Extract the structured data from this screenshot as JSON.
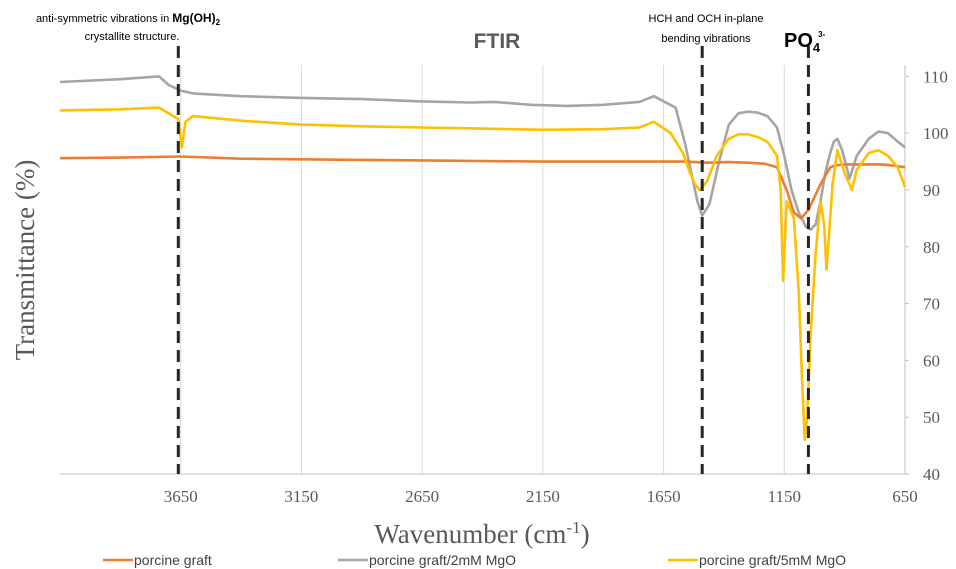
{
  "chart_data": {
    "type": "line",
    "title": "FTIR",
    "xlabel": "Wavenumber (cm",
    "xlabel_sup": "-1",
    "xlabel_end": ")",
    "ylabel": "Transmittance  (%)",
    "xlim": [
      4150,
      650
    ],
    "ylim": [
      40,
      112
    ],
    "x_reversed": true,
    "y_axis_side": "right",
    "x_ticks": [
      3650,
      3150,
      2650,
      2150,
      1650,
      1150,
      650
    ],
    "y_ticks": [
      40,
      50,
      60,
      70,
      80,
      90,
      100,
      110
    ],
    "grid": "vertical",
    "legend_position": "bottom",
    "series": [
      {
        "name": "porcine graft",
        "color": "#ED7D31",
        "x": [
          4150,
          3900,
          3650,
          3400,
          3150,
          2900,
          2650,
          2400,
          2150,
          1900,
          1650,
          1560,
          1470,
          1380,
          1300,
          1230,
          1180,
          1140,
          1110,
          1080,
          1050,
          1000,
          960,
          940,
          900,
          850,
          800,
          750,
          700,
          650
        ],
        "values": [
          95.6,
          95.7,
          95.9,
          95.5,
          95.4,
          95.3,
          95.2,
          95.1,
          95.0,
          95.0,
          95.0,
          95.0,
          94.8,
          94.9,
          94.8,
          94.6,
          94.0,
          90.0,
          86.0,
          85.0,
          86.5,
          91.0,
          94.0,
          94.3,
          94.5,
          94.5,
          94.5,
          94.5,
          94.3,
          94.0
        ]
      },
      {
        "name": "porcine graft/2mM MgO",
        "color": "#A5A5A5",
        "x": [
          4150,
          3900,
          3740,
          3700,
          3650,
          3600,
          3400,
          3150,
          2900,
          2650,
          2450,
          2350,
          2200,
          2050,
          1900,
          1750,
          1690,
          1600,
          1560,
          1530,
          1510,
          1490,
          1460,
          1420,
          1380,
          1340,
          1300,
          1260,
          1220,
          1180,
          1150,
          1120,
          1090,
          1060,
          1040,
          1020,
          1000,
          980,
          960,
          945,
          930,
          910,
          880,
          850,
          800,
          760,
          720,
          680,
          650
        ],
        "values": [
          109.0,
          109.5,
          110.0,
          108.5,
          107.5,
          107.0,
          106.5,
          106.2,
          106.0,
          105.6,
          105.4,
          105.5,
          105.0,
          104.8,
          105.0,
          105.5,
          106.5,
          104.5,
          98.0,
          92.0,
          88.0,
          85.5,
          87.5,
          95.0,
          101.5,
          103.5,
          103.8,
          103.6,
          103.0,
          101.0,
          96.0,
          90.0,
          86.0,
          83.5,
          83.0,
          84.0,
          88.0,
          93.0,
          96.5,
          98.5,
          99.0,
          97.0,
          92.0,
          96.0,
          99.0,
          100.3,
          100.0,
          98.5,
          97.5
        ]
      },
      {
        "name": "porcine graft/5mM MgO",
        "color": "#FFC000",
        "x": [
          4150,
          3900,
          3740,
          3700,
          3660,
          3645,
          3630,
          3600,
          3400,
          3150,
          2900,
          2650,
          2400,
          2150,
          1900,
          1750,
          1690,
          1620,
          1570,
          1540,
          1520,
          1500,
          1470,
          1430,
          1380,
          1340,
          1300,
          1260,
          1220,
          1180,
          1165,
          1155,
          1140,
          1110,
          1090,
          1075,
          1065,
          1055,
          1040,
          1020,
          1000,
          985,
          975,
          965,
          950,
          930,
          900,
          870,
          850,
          800,
          760,
          720,
          680,
          650
        ],
        "values": [
          104.0,
          104.2,
          104.5,
          103.5,
          102.5,
          97.5,
          102.0,
          103.0,
          102.2,
          101.5,
          101.2,
          101.0,
          100.8,
          100.6,
          100.7,
          101.0,
          102.0,
          100.0,
          96.5,
          93.0,
          91.0,
          90.0,
          91.5,
          96.0,
          99.0,
          99.8,
          99.8,
          99.3,
          98.5,
          96.0,
          90.0,
          74.0,
          88.0,
          85.0,
          72.0,
          55.0,
          46.0,
          50.0,
          65.0,
          79.0,
          88.0,
          84.0,
          76.0,
          82.0,
          91.0,
          97.0,
          93.0,
          90.0,
          93.5,
          96.5,
          97.0,
          96.0,
          94.0,
          90.5
        ]
      }
    ],
    "annotations": [
      {
        "id": "mgoh2",
        "x": 3660,
        "lines": [
          "anti-symmetric vibrations in ",
          "crystallite structure."
        ],
        "bold": "Mg(OH)",
        "bold_sub": "2"
      },
      {
        "id": "hch",
        "x": 1490,
        "lines": [
          "HCH and OCH in-plane",
          "bending vibrations"
        ]
      },
      {
        "id": "po4",
        "x": 1050,
        "label": "PO",
        "sub": "4",
        "sup": "3-"
      }
    ]
  }
}
